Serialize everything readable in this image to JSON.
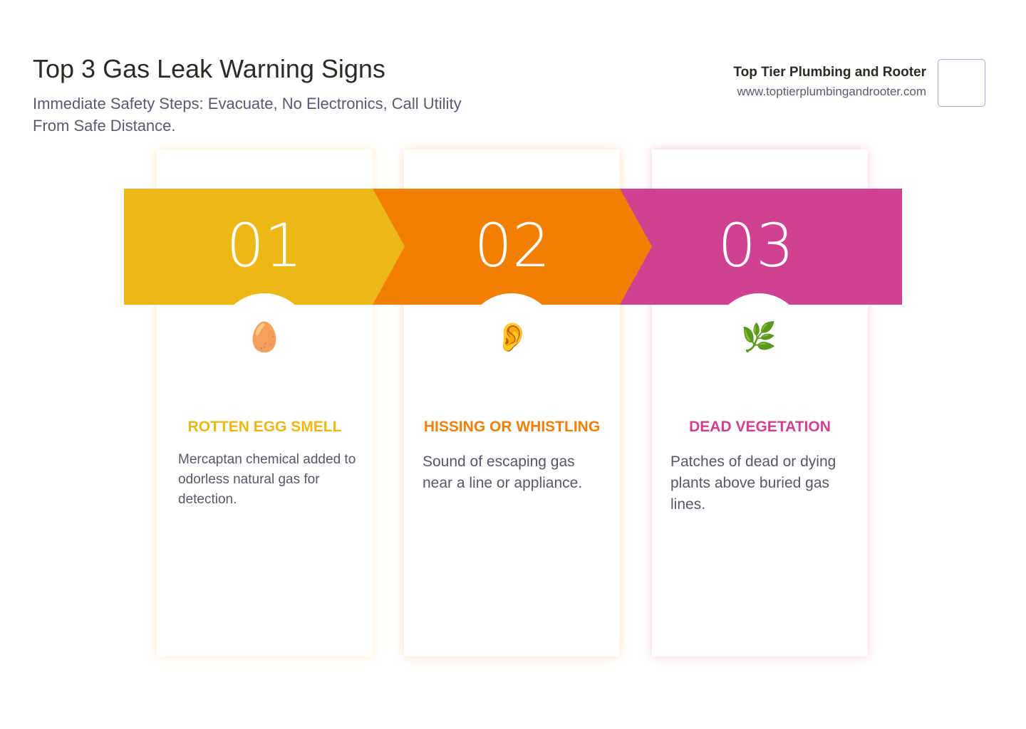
{
  "header": {
    "title": "Top 3 Gas Leak Warning Signs",
    "subtitle": "Immediate Safety Steps: Evacuate, No Electronics, Call Utility From Safe Distance."
  },
  "brand": {
    "name": "Top Tier Plumbing and Rooter",
    "url": "www.toptierplumbingandrooter.com"
  },
  "steps": [
    {
      "number": "01",
      "icon": "egg-icon",
      "emoji": "🥚",
      "title": "ROTTEN EGG SMELL",
      "description": "Mercaptan chemical added to odorless natural gas for detection.",
      "color": "#EBB817"
    },
    {
      "number": "02",
      "icon": "ear-icon",
      "emoji": "👂",
      "title": "HISSING OR WHISTLING",
      "description": "Sound of escaping gas near a line or appliance.",
      "color": "#F27F02"
    },
    {
      "number": "03",
      "icon": "herb-icon",
      "emoji": "🌿",
      "title": "DEAD VEGETATION",
      "description": "Patches of dead or dying plants above buried gas lines.",
      "color": "#D04192"
    }
  ]
}
